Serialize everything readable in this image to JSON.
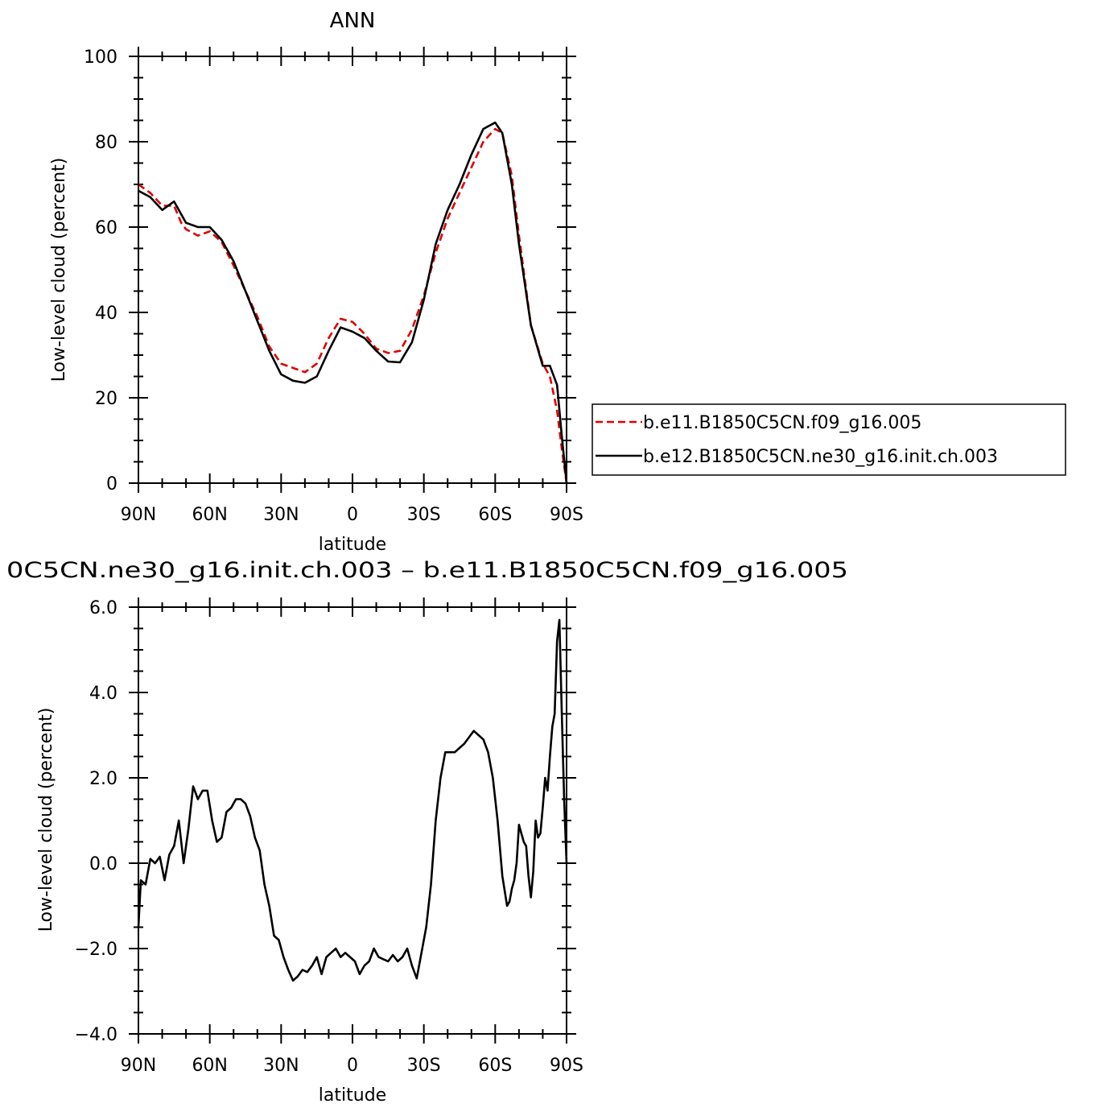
{
  "chart_data": [
    {
      "type": "line",
      "title": "ANN",
      "xlabel": "latitude",
      "ylabel": "Low-level cloud (percent)",
      "xlim": [
        90,
        -90
      ],
      "ylim": [
        0,
        100
      ],
      "xticks": [
        90,
        60,
        30,
        0,
        -30,
        -60,
        -90
      ],
      "xtick_labels": [
        "90N",
        "60N",
        "30N",
        "0",
        "30S",
        "60S",
        "90S"
      ],
      "yticks": [
        0,
        20,
        40,
        60,
        80,
        100
      ],
      "ytick_labels": [
        "0",
        "20",
        "40",
        "60",
        "80",
        "100"
      ],
      "grid": false,
      "legend_position": "right",
      "series": [
        {
          "name": "b.e11.B1850C5CN.f09_g16.005",
          "color": "#e00000",
          "dash": "dashed",
          "x": [
            90,
            85,
            80,
            75,
            72,
            70,
            65,
            60,
            55,
            50,
            45,
            40,
            35,
            30,
            25,
            20,
            15,
            10,
            5,
            0,
            -5,
            -10,
            -15,
            -20,
            -25,
            -30,
            -35,
            -40,
            -45,
            -50,
            -55,
            -60,
            -63,
            -67,
            -70,
            -75,
            -80,
            -83,
            -86,
            -88,
            -90
          ],
          "y": [
            70,
            68,
            65,
            65,
            61,
            59.5,
            58,
            59,
            56.5,
            51,
            45,
            39,
            32,
            28,
            27,
            26,
            28,
            34,
            38.5,
            37.8,
            35,
            31.5,
            30.5,
            31,
            36,
            44,
            54,
            62,
            68,
            74,
            80,
            83,
            82,
            72,
            58,
            37,
            28,
            25,
            17,
            8,
            0
          ]
        },
        {
          "name": "b.e12.B1850C5CN.ne30_g16.init.ch.003",
          "color": "#000000",
          "dash": "solid",
          "x": [
            90,
            85,
            80,
            75,
            72,
            70,
            65,
            60,
            55,
            50,
            45,
            40,
            35,
            30,
            25,
            20,
            15,
            10,
            5,
            0,
            -5,
            -10,
            -15,
            -20,
            -25,
            -30,
            -35,
            -40,
            -45,
            -50,
            -55,
            -60,
            -63,
            -67,
            -70,
            -75,
            -80,
            -83,
            -86,
            -88,
            -90
          ],
          "y": [
            68.5,
            67,
            64,
            66,
            63,
            61,
            60,
            60,
            57,
            52,
            45,
            38,
            31,
            25.5,
            24,
            23.5,
            25,
            31,
            36.5,
            35.5,
            34,
            31,
            28.5,
            28.3,
            33,
            43,
            56,
            64,
            70,
            77,
            83,
            84.5,
            82,
            70,
            56,
            37,
            27.5,
            27.5,
            23,
            11,
            0
          ]
        }
      ]
    },
    {
      "type": "line",
      "title": "0C5CN.ne30_g16.init.ch.003 – b.e11.B1850C5CN.f09_g16.005",
      "xlabel": "latitude",
      "ylabel": "Low-level cloud (percent)",
      "xlim": [
        90,
        -90
      ],
      "ylim": [
        -4,
        6
      ],
      "xticks": [
        90,
        60,
        30,
        0,
        -30,
        -60,
        -90
      ],
      "xtick_labels": [
        "90N",
        "60N",
        "30N",
        "0",
        "30S",
        "60S",
        "90S"
      ],
      "yticks": [
        -4,
        -2,
        0,
        2,
        4,
        6
      ],
      "ytick_labels": [
        "-4.0",
        "-2.0",
        "0.0",
        "2.0",
        "4.0",
        "6.0"
      ],
      "grid": false,
      "series": [
        {
          "color": "#000000",
          "dash": "solid",
          "x": [
            90,
            89,
            87,
            85,
            83,
            81,
            79,
            77,
            75,
            73,
            71,
            69,
            67,
            65,
            63,
            61,
            59,
            57,
            55,
            53,
            51,
            49,
            47,
            45,
            43,
            41,
            39,
            37,
            35,
            33,
            31,
            29,
            27,
            25,
            23,
            21,
            19,
            17,
            15,
            13,
            11,
            9,
            7,
            5,
            3,
            1,
            -1,
            -3,
            -5,
            -7,
            -9,
            -11,
            -13,
            -15,
            -17,
            -19,
            -21,
            -23,
            -25,
            -27,
            -29,
            -31,
            -33,
            -35,
            -37,
            -39,
            -41,
            -43,
            -45,
            -47,
            -49,
            -51,
            -53,
            -55,
            -57,
            -59,
            -61,
            -63,
            -65,
            -66,
            -67,
            -68,
            -69,
            -70,
            -71,
            -72,
            -73,
            -74,
            -75,
            -76,
            -77,
            -78,
            -79,
            -80,
            -81,
            -82,
            -83,
            -84,
            -85,
            -86,
            -87,
            -88,
            -89,
            -90
          ],
          "y": [
            -1.5,
            -0.4,
            -0.5,
            0.1,
            0.0,
            0.15,
            -0.4,
            0.2,
            0.4,
            1.0,
            0.0,
            0.8,
            1.8,
            1.5,
            1.7,
            1.7,
            1.0,
            0.5,
            0.6,
            1.2,
            1.3,
            1.5,
            1.5,
            1.4,
            1.1,
            0.6,
            0.3,
            -0.5,
            -1.0,
            -1.7,
            -1.8,
            -2.2,
            -2.5,
            -2.75,
            -2.65,
            -2.5,
            -2.55,
            -2.4,
            -2.2,
            -2.6,
            -2.2,
            -2.1,
            -2.0,
            -2.2,
            -2.1,
            -2.2,
            -2.3,
            -2.6,
            -2.4,
            -2.3,
            -2.0,
            -2.2,
            -2.25,
            -2.3,
            -2.15,
            -2.3,
            -2.2,
            -2.0,
            -2.4,
            -2.7,
            -2.1,
            -1.5,
            -0.5,
            1.0,
            2.0,
            2.6,
            2.6,
            2.6,
            2.7,
            2.8,
            2.95,
            3.1,
            3.0,
            2.9,
            2.6,
            2.0,
            1.0,
            -0.3,
            -1.0,
            -0.9,
            -0.6,
            -0.4,
            0.0,
            0.9,
            0.7,
            0.5,
            0.4,
            -0.3,
            -0.8,
            -0.2,
            1.0,
            0.6,
            0.7,
            1.3,
            2.0,
            1.7,
            2.5,
            3.2,
            3.5,
            5.2,
            5.7,
            3.5,
            1.5,
            0.0
          ]
        }
      ]
    }
  ]
}
